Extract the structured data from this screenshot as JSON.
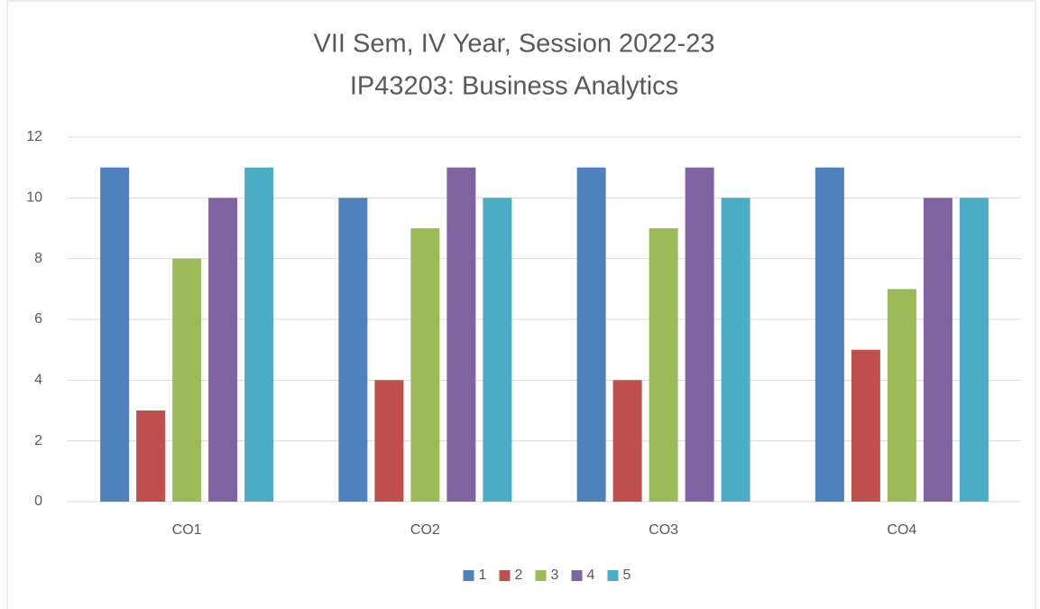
{
  "chart_data": {
    "type": "bar",
    "title": [
      "VII Sem, IV Year, Session 2022-23",
      "IP43203: Business Analytics"
    ],
    "categories": [
      "CO1",
      "CO2",
      "CO3",
      "CO4"
    ],
    "series": [
      {
        "name": "1",
        "color": "#4f81bd",
        "values": [
          11,
          10,
          11,
          11
        ]
      },
      {
        "name": "2",
        "color": "#c0504d",
        "values": [
          3,
          4,
          4,
          5
        ]
      },
      {
        "name": "3",
        "color": "#9bbb59",
        "values": [
          8,
          9,
          9,
          7
        ]
      },
      {
        "name": "4",
        "color": "#8064a2",
        "values": [
          10,
          11,
          11,
          10
        ]
      },
      {
        "name": "5",
        "color": "#4bacc6",
        "values": [
          11,
          10,
          10,
          10
        ]
      }
    ],
    "ylim": [
      0,
      12
    ],
    "yticks": [
      0,
      2,
      4,
      6,
      8,
      10,
      12
    ],
    "grid": true,
    "legend": "bottom"
  }
}
